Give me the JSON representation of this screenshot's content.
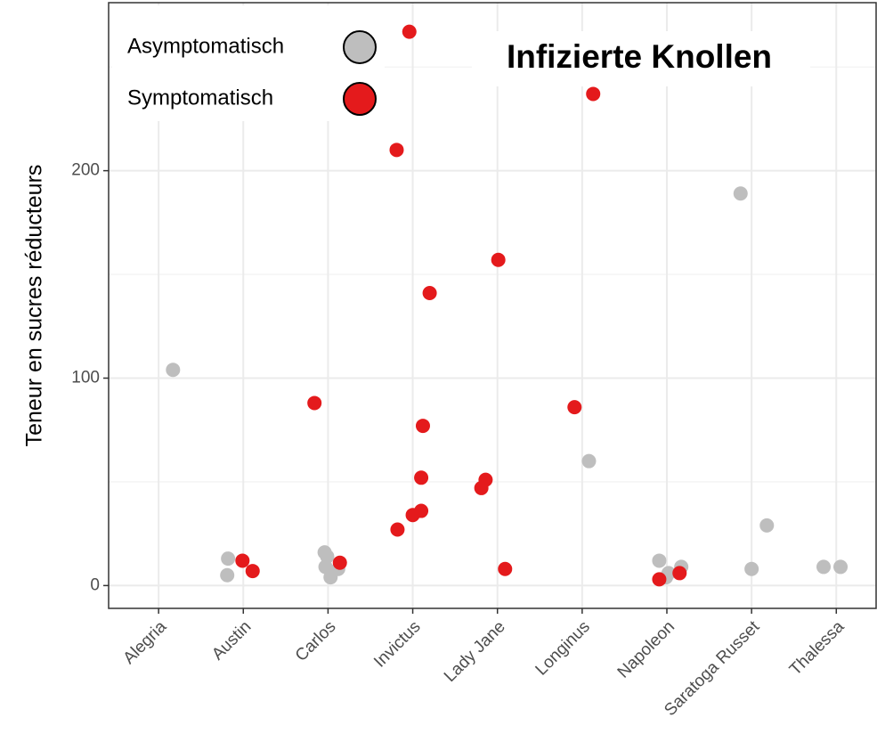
{
  "chart_data": {
    "type": "scatter",
    "title": "Infizierte Knollen",
    "y_label": "Teneur en sucres réducteurs",
    "xlim": [
      0.41,
      9.47
    ],
    "xticks": [
      {
        "value": 1,
        "label": "Alegria"
      },
      {
        "value": 2,
        "label": "Austin"
      },
      {
        "value": 3,
        "label": "Carlos"
      },
      {
        "value": 4,
        "label": "Invictus"
      },
      {
        "value": 5,
        "label": "Lady Jane"
      },
      {
        "value": 6,
        "label": "Longinus"
      },
      {
        "value": 7,
        "label": "Napoleon"
      },
      {
        "value": 8,
        "label": "Saratoga Russet"
      },
      {
        "value": 9,
        "label": "Thalessa"
      }
    ],
    "ylim": [
      -11,
      281
    ],
    "yticks": [
      0,
      100,
      200
    ],
    "yminor_ticks": [
      50,
      150,
      250
    ],
    "grid": true,
    "legend": "top-left",
    "series": [
      {
        "name": "Asymptomatisch",
        "color": "#bebebe",
        "x": [
          1.17,
          1.82,
          1.81,
          2.96,
          2.99,
          2.97,
          3.12,
          3.03,
          6.08,
          6.91,
          7.02,
          6.99,
          7.17,
          7.87,
          8.18,
          8.0,
          8.85,
          9.05
        ],
        "values": [
          104,
          13,
          5,
          16,
          14,
          9,
          8,
          4,
          60,
          12,
          6,
          4,
          9,
          189,
          29,
          8,
          9,
          9
        ]
      },
      {
        "name": "Symptomatisch",
        "color": "#e41a1c",
        "x": [
          1.99,
          2.11,
          2.84,
          3.14,
          3.96,
          3.81,
          4.2,
          4.12,
          4.1,
          4.1,
          4.0,
          3.82,
          5.01,
          4.86,
          4.81,
          5.09,
          5.91,
          6.13,
          6.91,
          7.15
        ],
        "values": [
          12,
          7,
          88,
          11,
          267,
          210,
          141,
          77,
          52,
          36,
          34,
          27,
          157,
          51,
          47,
          8,
          86,
          237,
          3,
          6
        ]
      }
    ]
  }
}
